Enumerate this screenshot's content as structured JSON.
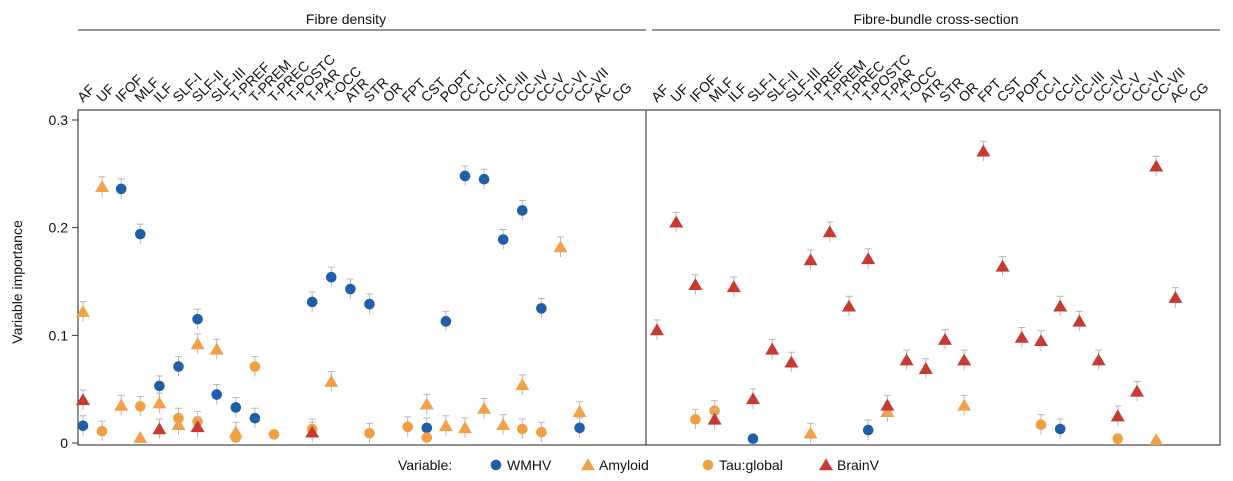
{
  "panels": [
    "Fibre density",
    "Fibre-bundle cross-section"
  ],
  "ylabel": "Variable importance",
  "legend_title": "Variable:",
  "colors": {
    "WMHV": "#1f5fa8",
    "Amyloid": "#f2a14a",
    "Tau:global": "#f0a040",
    "BrainV": "#c73a32"
  },
  "chart_data": {
    "type": "scatter",
    "ylim": [
      0,
      0.3
    ],
    "yticks": [
      0,
      0.1,
      0.2,
      0.3
    ],
    "ytick_labels": [
      "0",
      "0.1",
      "0.2",
      "0.3"
    ],
    "legend_placement": "bottom",
    "categories": [
      "AF",
      "UF",
      "IFOF",
      "MLF",
      "ILF",
      "SLF-I",
      "SLF-II",
      "SLF-III",
      "T-PREF",
      "T-PREM",
      "T-PREC",
      "T-POSTC",
      "T-PAR",
      "T-OCC",
      "ATR",
      "STR",
      "OR",
      "FPT",
      "CST",
      "POPT",
      "CC-I",
      "CC-II",
      "CC-III",
      "CC-IV",
      "CC-V",
      "CC-VI",
      "CC-VII",
      "AC",
      "CG"
    ],
    "panels": [
      {
        "title": "Fibre density",
        "series": [
          {
            "name": "WMHV",
            "marker": "circle",
            "values": [
              0.016,
              null,
              0.236,
              0.194,
              0.053,
              0.071,
              0.115,
              0.045,
              0.033,
              0.023,
              null,
              null,
              0.131,
              0.154,
              0.143,
              0.129,
              null,
              null,
              0.014,
              0.113,
              0.248,
              0.245,
              0.189,
              0.216,
              0.125,
              null,
              0.014,
              null,
              null
            ]
          },
          {
            "name": "Amyloid",
            "marker": "triangle",
            "values": [
              0.122,
              0.238,
              0.035,
              0.005,
              0.037,
              0.017,
              0.092,
              0.087,
              0.01,
              null,
              null,
              null,
              null,
              0.057,
              null,
              null,
              null,
              null,
              0.036,
              0.016,
              0.014,
              0.032,
              0.017,
              0.054,
              null,
              0.182,
              0.029,
              null,
              null
            ]
          },
          {
            "name": "Tau:global",
            "marker": "circle",
            "values": [
              null,
              0.011,
              null,
              0.034,
              null,
              0.023,
              0.02,
              null,
              0.005,
              0.071,
              0.008,
              null,
              0.013,
              null,
              null,
              0.009,
              null,
              0.015,
              0.005,
              null,
              null,
              null,
              null,
              0.013,
              0.01,
              null,
              null,
              null,
              null
            ]
          },
          {
            "name": "BrainV",
            "marker": "triangle",
            "values": [
              0.04,
              null,
              null,
              null,
              0.013,
              null,
              0.015,
              null,
              null,
              null,
              null,
              null,
              0.01,
              null,
              null,
              null,
              null,
              null,
              null,
              null,
              null,
              null,
              null,
              null,
              null,
              null,
              null,
              null,
              null
            ]
          }
        ]
      },
      {
        "title": "Fibre-bundle cross-section",
        "series": [
          {
            "name": "WMHV",
            "marker": "circle",
            "values": [
              null,
              null,
              null,
              null,
              null,
              0.004,
              null,
              null,
              null,
              null,
              null,
              0.012,
              null,
              null,
              null,
              null,
              null,
              null,
              null,
              null,
              null,
              0.013,
              null,
              null,
              null,
              null,
              null,
              null,
              null
            ]
          },
          {
            "name": "Amyloid",
            "marker": "triangle",
            "values": [
              null,
              null,
              null,
              null,
              null,
              null,
              null,
              null,
              0.009,
              null,
              null,
              null,
              0.029,
              null,
              null,
              null,
              0.035,
              null,
              null,
              null,
              null,
              null,
              null,
              null,
              null,
              null,
              0.003,
              null,
              null
            ]
          },
          {
            "name": "Tau:global",
            "marker": "circle",
            "values": [
              null,
              null,
              0.022,
              0.03,
              null,
              null,
              null,
              null,
              null,
              null,
              null,
              null,
              null,
              null,
              null,
              null,
              null,
              null,
              null,
              null,
              0.017,
              null,
              null,
              null,
              0.004,
              null,
              null,
              null,
              null
            ]
          },
          {
            "name": "BrainV",
            "marker": "triangle",
            "values": [
              0.105,
              0.205,
              0.147,
              0.022,
              0.145,
              0.041,
              0.087,
              0.075,
              0.17,
              0.196,
              0.127,
              0.171,
              0.035,
              0.077,
              0.069,
              0.096,
              0.077,
              0.271,
              0.164,
              0.098,
              0.095,
              0.127,
              0.113,
              0.077,
              0.025,
              0.048,
              0.257,
              0.135,
              null
            ]
          }
        ]
      }
    ]
  }
}
